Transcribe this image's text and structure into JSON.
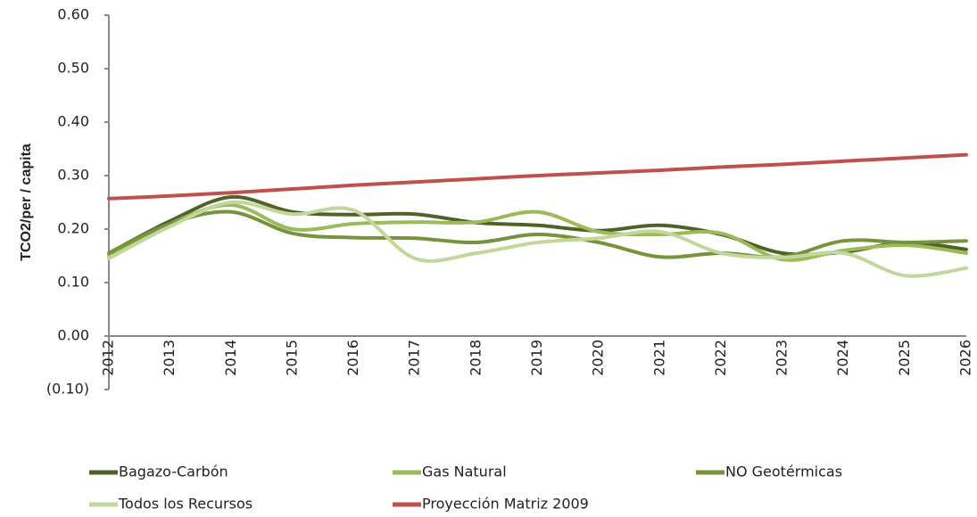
{
  "chart_data": {
    "type": "line",
    "y_label": "TCO2/per / capita",
    "categories": [
      "2012",
      "2013",
      "2014",
      "2015",
      "2016",
      "2017",
      "2018",
      "2019",
      "2020",
      "2021",
      "2022",
      "2023",
      "2024",
      "2025",
      "2026"
    ],
    "ylim": [
      -0.1,
      0.6
    ],
    "yticks": [
      {
        "value": 0.6,
        "label": "0.60"
      },
      {
        "value": 0.5,
        "label": "0.50"
      },
      {
        "value": 0.4,
        "label": "0.40"
      },
      {
        "value": 0.3,
        "label": "0.30"
      },
      {
        "value": 0.2,
        "label": "0.20"
      },
      {
        "value": 0.1,
        "label": "0.10"
      },
      {
        "value": 0,
        "label": "0.00"
      },
      {
        "value": -0.1,
        "label": "(0.10)"
      }
    ],
    "grid": false,
    "legend": "bottom",
    "series": [
      {
        "name": "Bagazo-Carbón",
        "color": "#4f6228",
        "values": [
          0.155,
          0.215,
          0.26,
          0.232,
          0.227,
          0.228,
          0.212,
          0.207,
          0.197,
          0.207,
          0.19,
          0.155,
          0.157,
          0.175,
          0.162
        ]
      },
      {
        "name": "Gas Natural",
        "color": "#9bbb59",
        "values": [
          0.15,
          0.21,
          0.245,
          0.2,
          0.21,
          0.213,
          0.213,
          0.232,
          0.195,
          0.19,
          0.192,
          0.143,
          0.16,
          0.17,
          0.155
        ]
      },
      {
        "name": "NO Geotérmicas",
        "color": "#77933c",
        "values": [
          0.155,
          0.21,
          0.232,
          0.192,
          0.184,
          0.183,
          0.175,
          0.19,
          0.175,
          0.148,
          0.155,
          0.148,
          0.178,
          0.175,
          0.178
        ]
      },
      {
        "name": "Todos los Recursos",
        "color": "#c3d69b",
        "values": [
          0.145,
          0.205,
          0.25,
          0.228,
          0.235,
          0.145,
          0.155,
          0.175,
          0.183,
          0.195,
          0.155,
          0.147,
          0.155,
          0.113,
          0.127
        ]
      },
      {
        "name": "Proyección Matriz 2009",
        "color": "#c0504d",
        "values": [
          0.257,
          0.262,
          0.268,
          0.275,
          0.282,
          0.288,
          0.294,
          0.3,
          0.305,
          0.31,
          0.316,
          0.321,
          0.327,
          0.333,
          0.339
        ]
      }
    ]
  }
}
